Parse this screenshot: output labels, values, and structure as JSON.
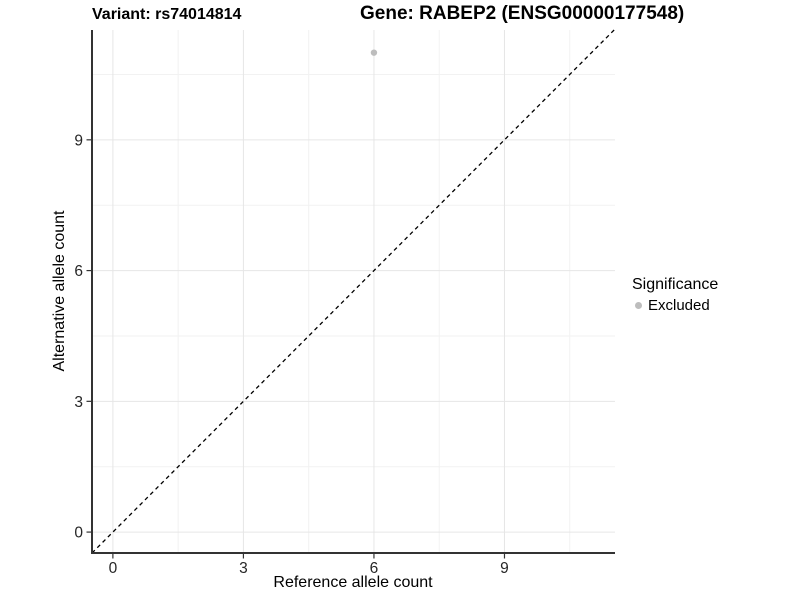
{
  "title": {
    "variant": "Variant: rs74014814",
    "gene": "Gene: RABEP2 (ENSG00000177548)"
  },
  "chart_data": {
    "type": "scatter",
    "title_left": "Variant: rs74014814",
    "title_right": "Gene: RABEP2 (ENSG00000177548)",
    "xlabel": "Reference allele count",
    "ylabel": "Alternative allele count",
    "xlim": [
      -0.48,
      11.54
    ],
    "ylim": [
      -0.48,
      11.52
    ],
    "x_ticks": [
      0,
      3,
      6,
      9
    ],
    "y_ticks": [
      0,
      3,
      6,
      9
    ],
    "x_minor_gridlines": [
      1.5,
      4.5,
      7.5,
      10.5
    ],
    "y_minor_gridlines": [
      1.5,
      4.5,
      7.5,
      10.5
    ],
    "grid": true,
    "points": [
      {
        "x": 6,
        "y": 11,
        "series": "Excluded"
      }
    ],
    "reference_line": {
      "type": "identity y=x",
      "style": "dashed"
    },
    "legend": {
      "title": "Significance",
      "position": "right",
      "entries": [
        {
          "label": "Excluded",
          "color": "#bdbdbd"
        }
      ]
    }
  },
  "colors": {
    "background": "#ffffff",
    "point": "#bdbdbd",
    "dashed_line": "#000000",
    "axis_line": "#333333",
    "tick_mark": "#333333",
    "tick_label": "#262626",
    "grid_major": "#e6e6e6",
    "grid_minor": "#f2f2f2"
  }
}
